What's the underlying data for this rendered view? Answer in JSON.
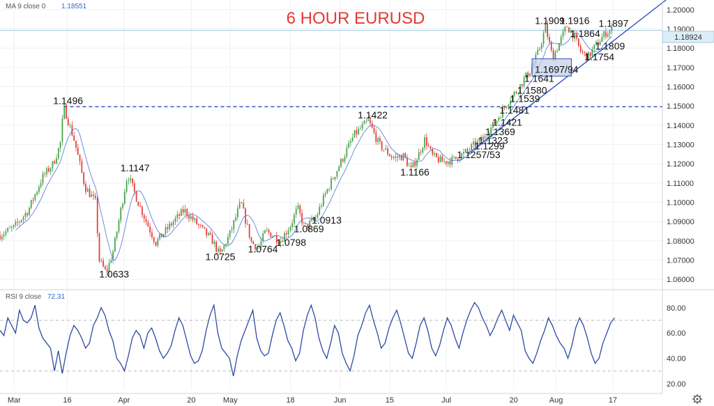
{
  "chart_data": [
    {
      "type": "candlestick",
      "title": "6 HOUR EURUSD",
      "indicator_label": "MA 9 close 0",
      "indicator_value": "1.18551",
      "current_price": "1.18924",
      "ylim": [
        1.055,
        1.205
      ],
      "y_ticks": [
        "1.06000",
        "1.07000",
        "1.08000",
        "1.09000",
        "1.10000",
        "1.11000",
        "1.12000",
        "1.13000",
        "1.14000",
        "1.15000",
        "1.16000",
        "1.17000",
        "1.18000",
        "1.19000",
        "1.20000"
      ],
      "x_ticks": [
        {
          "t": 0.0,
          "label": "Mar"
        },
        {
          "t": 15.0,
          "label": "16"
        },
        {
          "t": 31.0,
          "label": "Apr"
        },
        {
          "t": 50.0,
          "label": "20"
        },
        {
          "t": 61.0,
          "label": "May"
        },
        {
          "t": 78.0,
          "label": "18"
        },
        {
          "t": 92.0,
          "label": "Jun"
        },
        {
          "t": 106.0,
          "label": "15"
        },
        {
          "t": 122.0,
          "label": "Jul"
        },
        {
          "t": 141.0,
          "label": "20"
        },
        {
          "t": 153.0,
          "label": "Aug"
        },
        {
          "t": 169.0,
          "label": "17"
        }
      ],
      "xlim": [
        -4,
        183
      ],
      "price_path": [
        [
          -4,
          1.083
        ],
        [
          0,
          1.087
        ],
        [
          4,
          1.096
        ],
        [
          8,
          1.113
        ],
        [
          11,
          1.12
        ],
        [
          13,
          1.13
        ],
        [
          14,
          1.1496
        ],
        [
          17,
          1.132
        ],
        [
          20,
          1.108
        ],
        [
          23,
          1.1
        ],
        [
          24,
          1.07
        ],
        [
          26,
          1.0633
        ],
        [
          28,
          1.075
        ],
        [
          30,
          1.095
        ],
        [
          32,
          1.1147
        ],
        [
          35,
          1.1
        ],
        [
          38,
          1.087
        ],
        [
          40,
          1.079
        ],
        [
          44,
          1.088
        ],
        [
          48,
          1.096
        ],
        [
          52,
          1.088
        ],
        [
          56,
          1.08
        ],
        [
          58,
          1.0725
        ],
        [
          61,
          1.084
        ],
        [
          64,
          1.1
        ],
        [
          67,
          1.079
        ],
        [
          69,
          1.0764
        ],
        [
          71,
          1.085
        ],
        [
          73,
          1.083
        ],
        [
          75,
          1.0798
        ],
        [
          78,
          1.088
        ],
        [
          80,
          1.097
        ],
        [
          82,
          1.0869
        ],
        [
          85,
          1.0913
        ],
        [
          88,
          1.105
        ],
        [
          92,
          1.12
        ],
        [
          96,
          1.135
        ],
        [
          100,
          1.1422
        ],
        [
          103,
          1.13
        ],
        [
          107,
          1.123
        ],
        [
          110,
          1.124
        ],
        [
          112,
          1.1166
        ],
        [
          114,
          1.124
        ],
        [
          116,
          1.133
        ],
        [
          118,
          1.124
        ],
        [
          121,
          1.121
        ],
        [
          124,
          1.122
        ],
        [
          127,
          1.1253
        ],
        [
          130,
          1.1299
        ],
        [
          132,
          1.1323
        ],
        [
          134,
          1.1369
        ],
        [
          136,
          1.1421
        ],
        [
          138,
          1.1481
        ],
        [
          140,
          1.1539
        ],
        [
          142,
          1.158
        ],
        [
          144,
          1.1641
        ],
        [
          146,
          1.1694
        ],
        [
          148,
          1.178
        ],
        [
          150,
          1.1909
        ],
        [
          152,
          1.175
        ],
        [
          154,
          1.183
        ],
        [
          156,
          1.1916
        ],
        [
          158,
          1.1864
        ],
        [
          160,
          1.178
        ],
        [
          162,
          1.1754
        ],
        [
          164,
          1.1809
        ],
        [
          167,
          1.188
        ],
        [
          169,
          1.1897
        ]
      ],
      "horizontal_levels": [
        {
          "label": "1.1496",
          "value": 1.1496,
          "style": "dashed",
          "color": "#2f4fbf"
        }
      ],
      "trendline": {
        "color": "#2f4fbf",
        "points": [
          [
            128,
            1.125
          ],
          [
            184,
            1.205
          ]
        ]
      },
      "annotations": [
        {
          "text": "1.1496",
          "t": 11,
          "y": 1.151
        },
        {
          "text": "1.0633",
          "t": 24,
          "y": 1.061
        },
        {
          "text": "1.1147",
          "t": 30,
          "y": 1.116
        },
        {
          "text": "1.0725",
          "t": 54,
          "y": 1.07
        },
        {
          "text": "1.0764",
          "t": 66,
          "y": 1.074
        },
        {
          "text": "1.0798",
          "t": 74,
          "y": 1.0775
        },
        {
          "text": "1.0869",
          "t": 79,
          "y": 1.0845
        },
        {
          "text": "1.0913",
          "t": 84,
          "y": 1.089
        },
        {
          "text": "1.1422",
          "t": 97,
          "y": 1.1435
        },
        {
          "text": "1.1166",
          "t": 109,
          "y": 1.114
        },
        {
          "text": "1.1257/53",
          "t": 125,
          "y": 1.123
        },
        {
          "text": "1.1299",
          "t": 130,
          "y": 1.1275
        },
        {
          "text": "1.1323",
          "t": 131,
          "y": 1.1303
        },
        {
          "text": "1.1369",
          "t": 133,
          "y": 1.1348
        },
        {
          "text": "1.1421",
          "t": 135,
          "y": 1.1398
        },
        {
          "text": "1.1481",
          "t": 137,
          "y": 1.146
        },
        {
          "text": "1.1539",
          "t": 140,
          "y": 1.152
        },
        {
          "text": "1.1580",
          "t": 142,
          "y": 1.1563
        },
        {
          "text": "1.1641",
          "t": 144,
          "y": 1.1625
        },
        {
          "text": "1.1697/94",
          "t": 147,
          "y": 1.1673
        },
        {
          "text": "1.1909",
          "t": 147,
          "y": 1.1925
        },
        {
          "text": "1.1916",
          "t": 154,
          "y": 1.1925
        },
        {
          "text": "1.1864",
          "t": 157,
          "y": 1.1858
        },
        {
          "text": "1.1897",
          "t": 165,
          "y": 1.191
        },
        {
          "text": "1.1809",
          "t": 164,
          "y": 1.1794
        },
        {
          "text": "1.1754",
          "t": 161,
          "y": 1.1738
        }
      ]
    },
    {
      "type": "line",
      "indicator_label": "RSI 9 close",
      "indicator_value": "72.31",
      "ylim": [
        15,
        92
      ],
      "y_ticks": [
        "20.00",
        "40.00",
        "60.00",
        "80.00"
      ],
      "bands": [
        30,
        70
      ],
      "values": [
        62,
        58,
        72,
        66,
        60,
        78,
        70,
        68,
        72,
        82,
        64,
        56,
        52,
        48,
        30,
        46,
        28,
        44,
        58,
        66,
        62,
        56,
        48,
        52,
        66,
        72,
        80,
        74,
        62,
        54,
        40,
        36,
        30,
        42,
        56,
        62,
        58,
        48,
        60,
        64,
        56,
        46,
        40,
        44,
        50,
        62,
        72,
        66,
        54,
        42,
        36,
        38,
        46,
        62,
        74,
        82,
        60,
        48,
        44,
        40,
        26,
        42,
        54,
        62,
        70,
        78,
        56,
        46,
        42,
        44,
        58,
        70,
        76,
        66,
        54,
        48,
        38,
        44,
        62,
        74,
        82,
        72,
        56,
        46,
        40,
        52,
        66,
        60,
        44,
        36,
        30,
        42,
        58,
        66,
        76,
        82,
        70,
        60,
        48,
        52,
        64,
        72,
        78,
        68,
        56,
        44,
        40,
        52,
        66,
        72,
        62,
        48,
        42,
        50,
        62,
        72,
        66,
        56,
        48,
        60,
        70,
        78,
        84,
        80,
        72,
        66,
        58,
        64,
        72,
        78,
        70,
        62,
        74,
        68,
        62,
        46,
        40,
        36,
        44,
        54,
        62,
        72,
        66,
        58,
        52,
        48,
        40,
        50,
        64,
        72,
        66,
        56,
        44,
        36,
        40,
        52,
        60,
        68,
        72
      ]
    }
  ]
}
